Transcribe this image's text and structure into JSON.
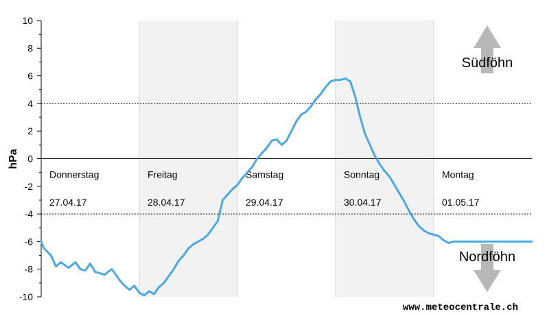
{
  "chart_data": {
    "type": "line",
    "ylabel": "hPa",
    "ylim": [
      -10,
      10
    ],
    "yticks": [
      10,
      8,
      6,
      4,
      2,
      0,
      -2,
      -4,
      -6,
      -8,
      -10
    ],
    "xlim": [
      0,
      5
    ],
    "grid": false,
    "reference_lines": [
      4,
      -4
    ],
    "zero_line": 0,
    "days": [
      {
        "name": "Donnerstag",
        "date": "27.04.17",
        "shaded": false
      },
      {
        "name": "Freitag",
        "date": "28.04.17",
        "shaded": true
      },
      {
        "name": "Samstag",
        "date": "29.04.17",
        "shaded": false
      },
      {
        "name": "Sonntag",
        "date": "30.04.17",
        "shaded": true
      },
      {
        "name": "Montag",
        "date": "01.05.17",
        "shaded": false
      }
    ],
    "zones": {
      "upper": "Südföhn",
      "lower": "Nordföhn"
    },
    "series": [
      {
        "color": "#4aa8e6",
        "x": [
          0,
          0.03,
          0.1,
          0.15,
          0.2,
          0.28,
          0.35,
          0.4,
          0.45,
          0.5,
          0.55,
          0.6,
          0.65,
          0.68,
          0.72,
          0.75,
          0.8,
          0.85,
          0.9,
          0.95,
          1.0,
          1.05,
          1.1,
          1.15,
          1.2,
          1.25,
          1.3,
          1.35,
          1.4,
          1.45,
          1.5,
          1.55,
          1.6,
          1.65,
          1.7,
          1.75,
          1.8,
          1.85,
          1.9,
          1.95,
          2.0,
          2.05,
          2.1,
          2.15,
          2.2,
          2.25,
          2.3,
          2.35,
          2.4,
          2.45,
          2.5,
          2.55,
          2.6,
          2.65,
          2.7,
          2.75,
          2.8,
          2.85,
          2.9,
          2.95,
          3.0,
          3.05,
          3.1,
          3.15,
          3.2,
          3.25,
          3.3,
          3.35,
          3.4,
          3.45,
          3.5,
          3.55,
          3.6,
          3.65,
          3.7,
          3.75,
          3.8,
          3.85,
          3.9,
          3.95,
          4.0,
          4.05,
          4.1,
          4.15,
          4.2,
          4.25,
          4.3,
          4.35,
          4.4,
          4.45,
          4.5,
          4.55,
          4.6,
          4.65,
          4.7,
          4.75,
          4.8,
          4.85,
          4.9,
          4.95,
          5.0
        ],
        "values": [
          -6.0,
          -6.5,
          -7.0,
          -7.8,
          -7.5,
          -7.9,
          -7.5,
          -8.0,
          -8.1,
          -7.6,
          -8.2,
          -8.3,
          -8.4,
          -8.2,
          -8.0,
          -8.3,
          -8.8,
          -9.2,
          -9.5,
          -9.2,
          -9.7,
          -9.9,
          -9.6,
          -9.8,
          -9.3,
          -9.0,
          -8.5,
          -8.0,
          -7.4,
          -7.0,
          -6.5,
          -6.2,
          -6.0,
          -5.8,
          -5.5,
          -5.0,
          -4.5,
          -3.0,
          -2.6,
          -2.2,
          -1.9,
          -1.4,
          -1.0,
          -0.6,
          0.0,
          0.4,
          0.8,
          1.3,
          1.4,
          1.0,
          1.3,
          2.0,
          2.7,
          3.2,
          3.4,
          3.8,
          4.3,
          4.7,
          5.2,
          5.6,
          5.7,
          5.7,
          5.8,
          5.6,
          4.5,
          3.0,
          1.8,
          1.0,
          0.2,
          -0.4,
          -0.9,
          -1.3,
          -1.9,
          -2.5,
          -3.1,
          -3.8,
          -4.4,
          -4.9,
          -5.2,
          -5.4,
          -5.5,
          -5.6,
          -5.9,
          -6.1,
          -6.0,
          -6.0,
          -6.0,
          -6.0,
          -6.0,
          -6.0,
          -6.0,
          -6.0,
          -6.0,
          -6.0,
          -6.0,
          -6.0,
          -6.0,
          -6.0,
          -6.0,
          -6.0,
          -6.0
        ]
      }
    ]
  },
  "watermark": "www.meteocentrale.ch"
}
